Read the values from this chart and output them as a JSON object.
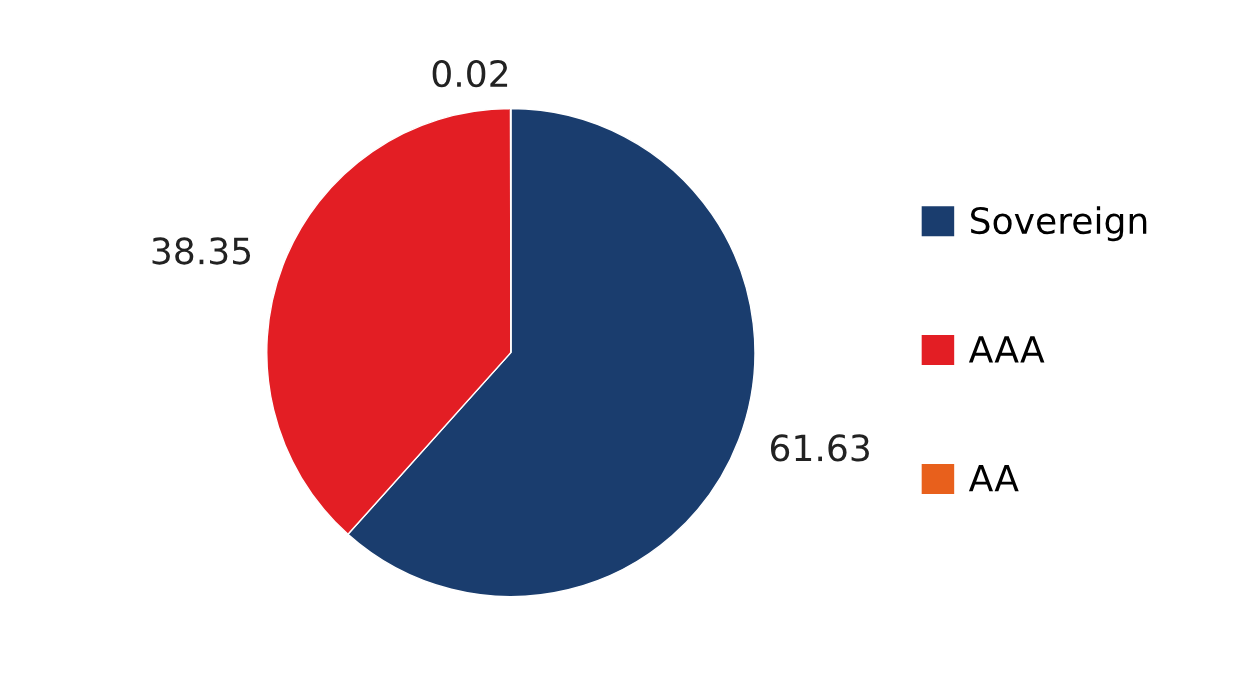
{
  "chart_data": {
    "type": "pie",
    "categories": [
      "Sovereign",
      "AAA",
      "AA"
    ],
    "values": [
      61.63,
      38.35,
      0.02
    ],
    "colors": [
      "#1a3d6e",
      "#e31e24",
      "#e8601c"
    ],
    "data_labels": true,
    "legend": "right"
  }
}
